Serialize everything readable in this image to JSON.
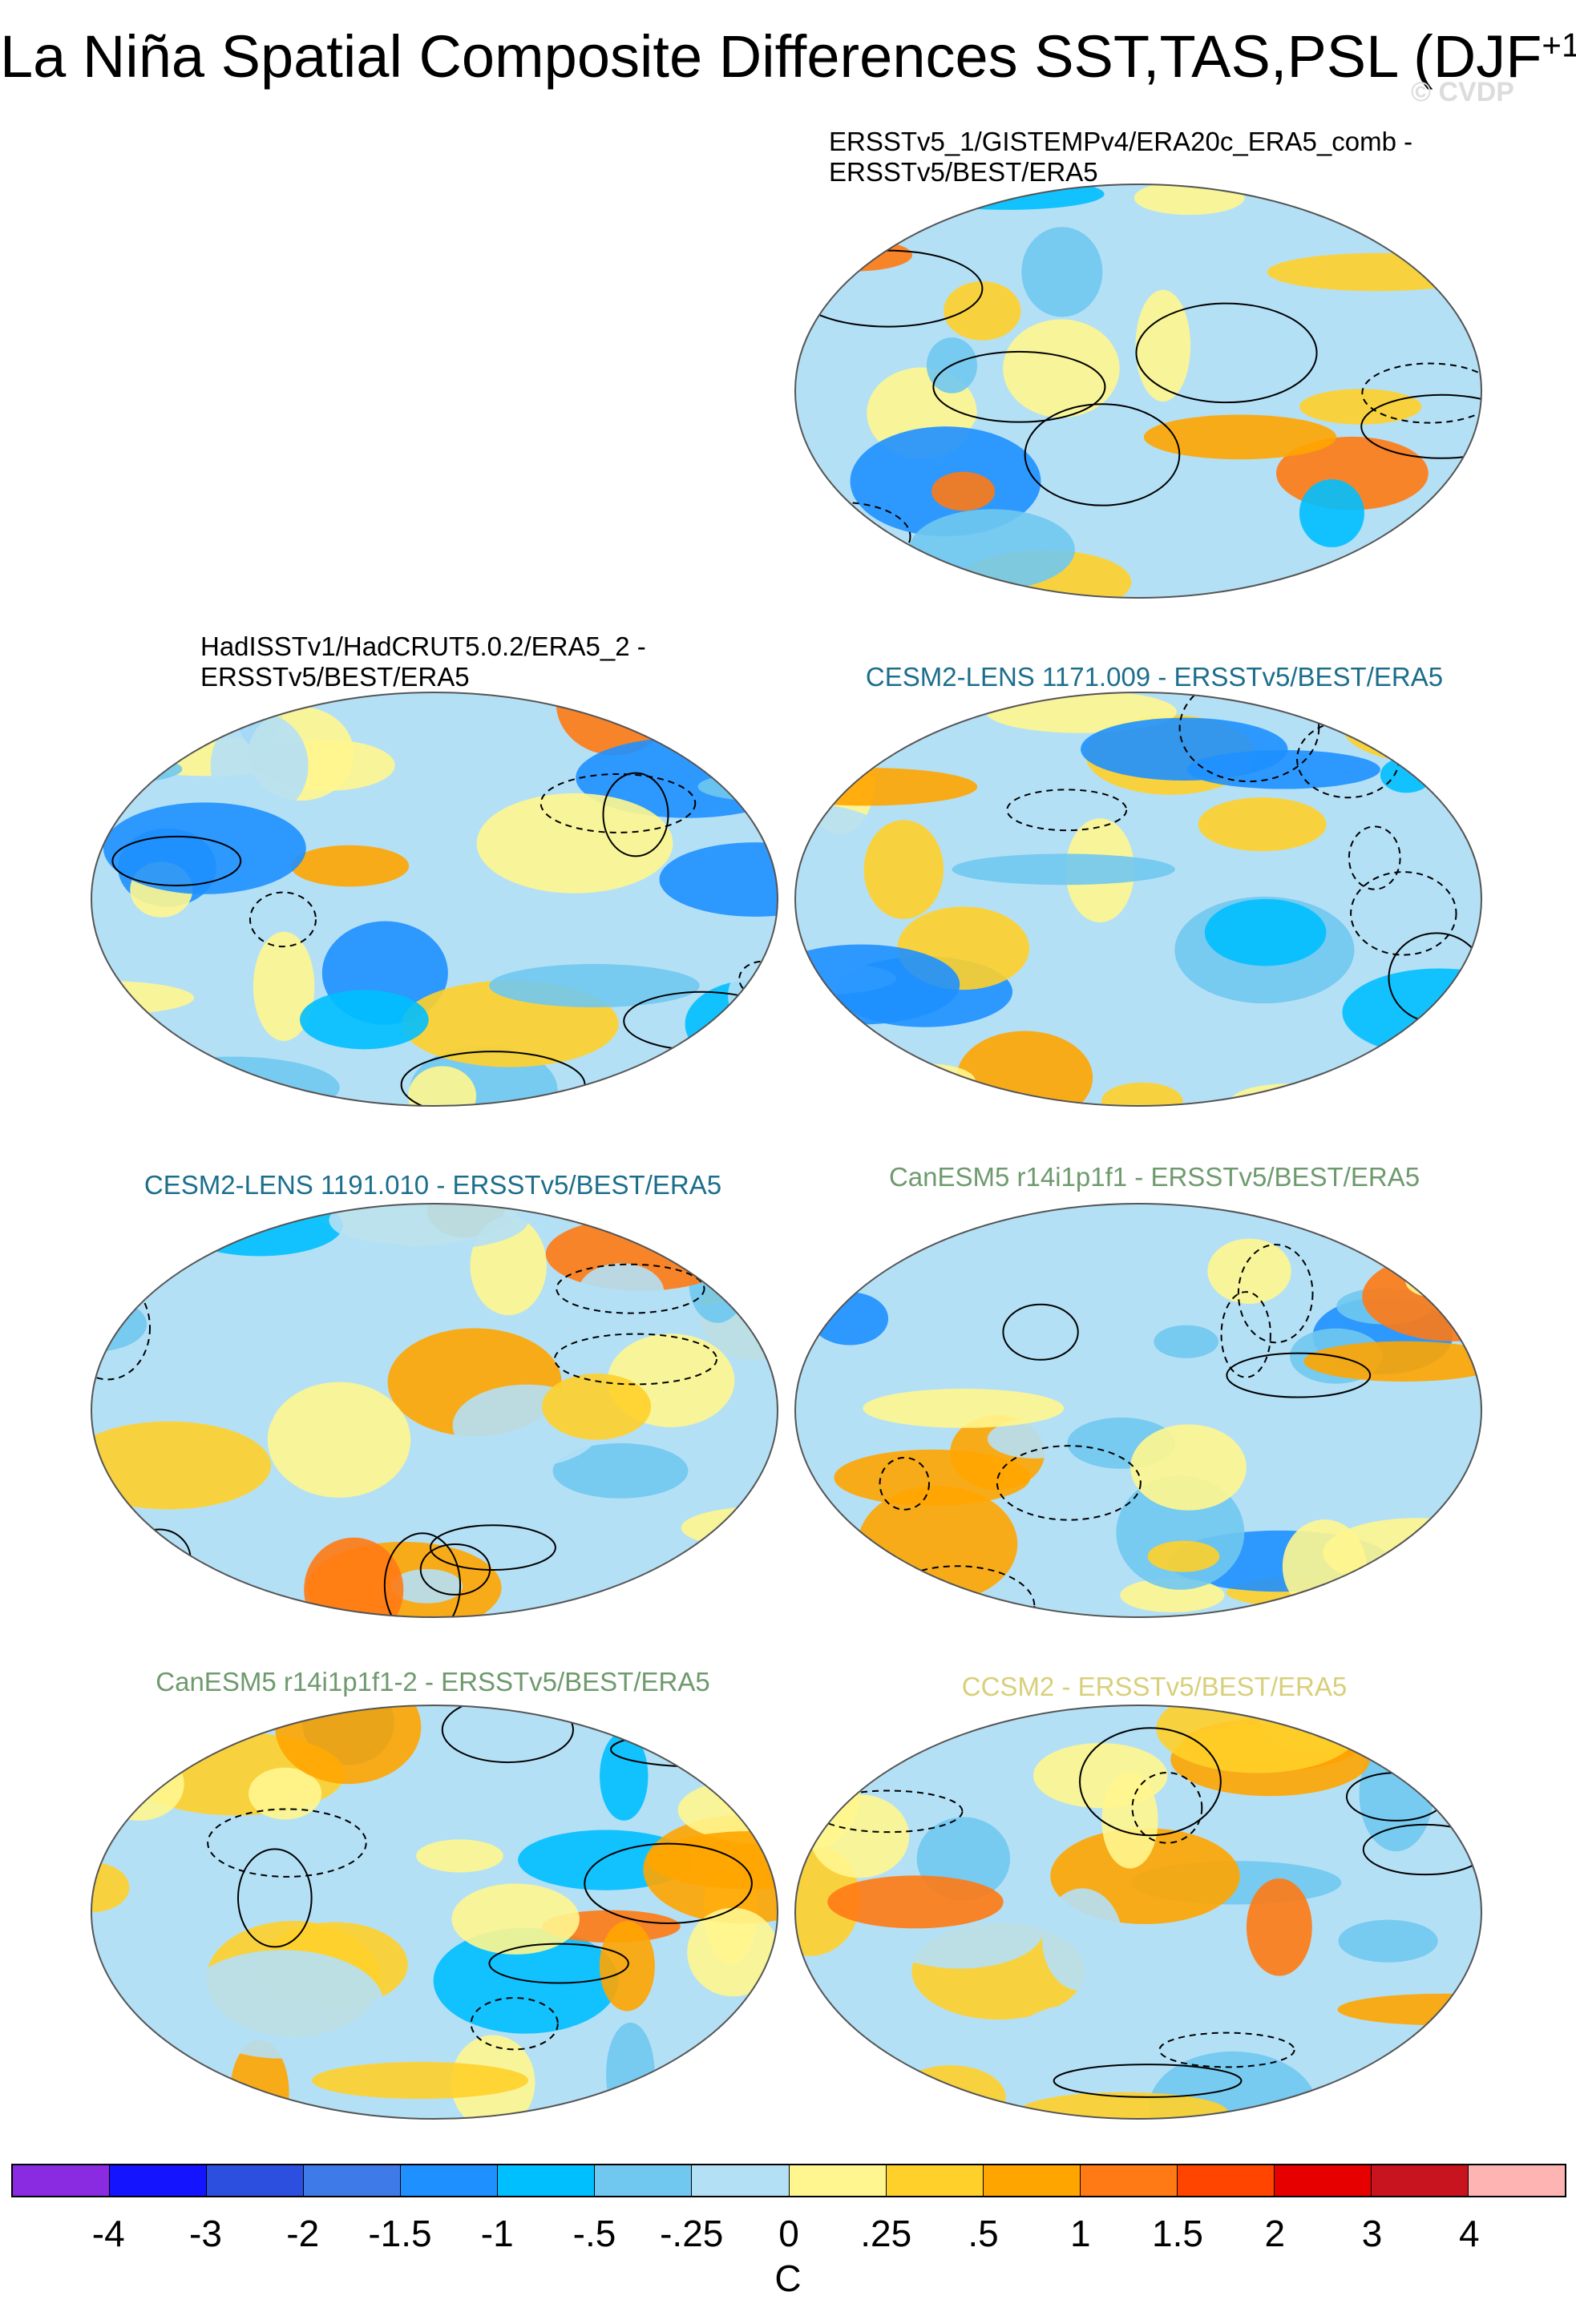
{
  "title": {
    "main": "La Niña Spatial Composite Differences SST,TAS,PSL (DJF",
    "superscript": "+1",
    "close": ")"
  },
  "watermark": "© CVDP",
  "panels": [
    {
      "title_line1": "ERSSTv5_1/GISTEMPv4/ERA20c_ERA5_comb -",
      "title_line2": "ERSSTv5/BEST/ERA5",
      "color": "#000000"
    },
    {
      "title_line1": "HadISSTv1/HadCRUT5.0.2/ERA5_2 -",
      "title_line2": "ERSSTv5/BEST/ERA5",
      "color": "#000000"
    },
    {
      "title_line1": "CESM2-LENS 1171.009 - ERSSTv5/BEST/ERA5",
      "title_line2": "",
      "color": "#1c6e8c"
    },
    {
      "title_line1": "CESM2-LENS 1191.010 - ERSSTv5/BEST/ERA5",
      "title_line2": "",
      "color": "#1c6e8c"
    },
    {
      "title_line1": "CanESM5 r14i1p1f1 - ERSSTv5/BEST/ERA5",
      "title_line2": "",
      "color": "#6e9a6e"
    },
    {
      "title_line1": "CanESM5 r14i1p1f1-2 - ERSSTv5/BEST/ERA5",
      "title_line2": "",
      "color": "#6e9a6e"
    },
    {
      "title_line1": "CCSM2 - ERSSTv5/BEST/ERA5",
      "title_line2": "",
      "color": "#d8cf7a"
    }
  ],
  "colorbar": {
    "colors": [
      "#8a2be2",
      "#1414ff",
      "#2c4fe0",
      "#3f7be8",
      "#1e90ff",
      "#00bfff",
      "#70c8f0",
      "#b4e0f6",
      "#fff68f",
      "#ffd02a",
      "#ffa500",
      "#ff7a14",
      "#ff4500",
      "#e60000",
      "#c8141e",
      "#ffb4b4"
    ],
    "ticks": [
      "-4",
      "-3",
      "-2",
      "-1.5",
      "-1",
      "-.5",
      "-.25",
      "0",
      ".25",
      ".5",
      "1",
      "1.5",
      "2",
      "3",
      "4"
    ],
    "unit": "C"
  }
}
